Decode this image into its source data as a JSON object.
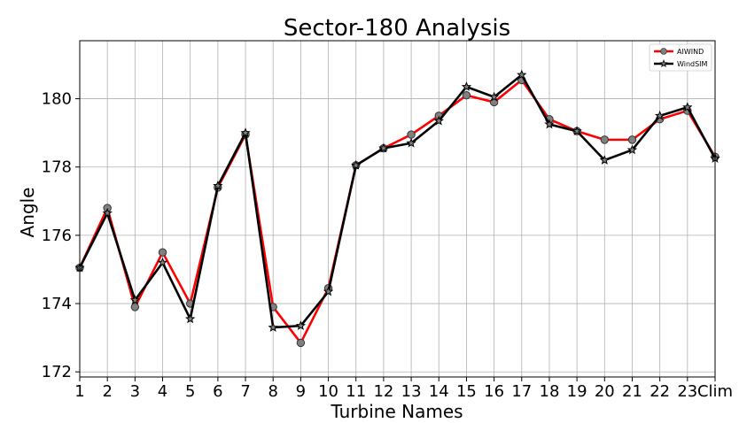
{
  "chart_data": {
    "type": "line",
    "title": "Sector-180 Analysis",
    "xlabel": "Turbine Names",
    "ylabel": "Angle",
    "categories": [
      "1",
      "2",
      "3",
      "4",
      "5",
      "6",
      "7",
      "8",
      "9",
      "10",
      "11",
      "12",
      "13",
      "14",
      "15",
      "16",
      "17",
      "18",
      "19",
      "20",
      "21",
      "22",
      "23",
      "Clim"
    ],
    "ylim": [
      171.85,
      181.7
    ],
    "yticks": [
      172,
      174,
      176,
      178,
      180
    ],
    "grid": true,
    "legend_position": "top-right",
    "series": [
      {
        "name": "AIWIND",
        "color": "#ff0000",
        "marker": "circle",
        "values": [
          175.05,
          176.8,
          173.9,
          175.5,
          174.0,
          177.4,
          178.95,
          173.9,
          172.85,
          174.45,
          178.05,
          178.55,
          178.95,
          179.5,
          180.1,
          179.9,
          180.55,
          179.4,
          179.05,
          178.8,
          178.8,
          179.4,
          179.65,
          178.3
        ]
      },
      {
        "name": "WindSIM",
        "color": "#000000",
        "marker": "star",
        "values": [
          175.05,
          176.65,
          174.1,
          175.2,
          173.55,
          177.45,
          179.0,
          173.3,
          173.35,
          174.35,
          178.05,
          178.55,
          178.7,
          179.35,
          180.35,
          180.05,
          180.7,
          179.25,
          179.05,
          178.2,
          178.5,
          179.5,
          179.75,
          178.25
        ]
      }
    ]
  }
}
